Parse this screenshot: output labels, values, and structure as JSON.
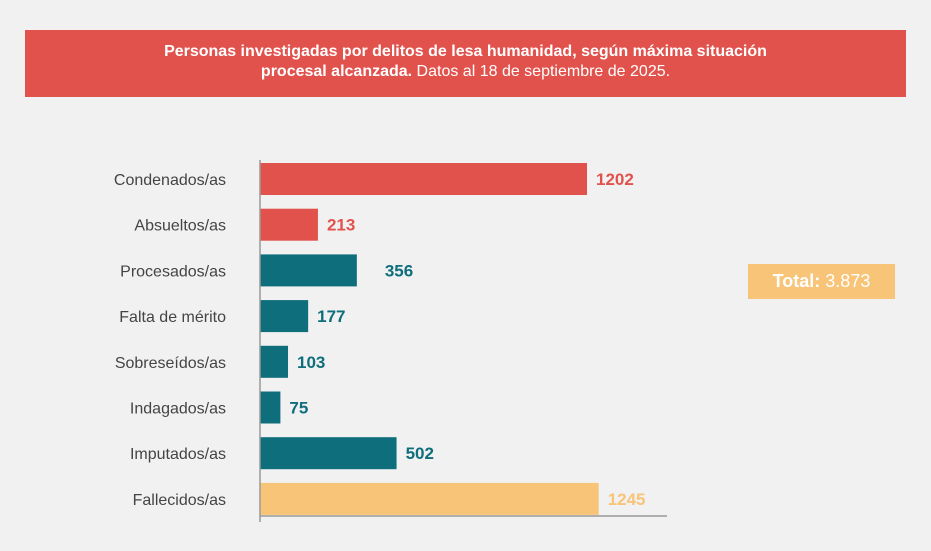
{
  "header": {
    "title_bold_line1": "Personas investigadas por delitos de lesa humanidad, según máxima situación",
    "title_bold_line2": "procesal alcanzada.",
    "title_regular": " Datos al 18 de septiembre de 2025."
  },
  "total": {
    "label": "Total:",
    "value": " 3.873"
  },
  "colors": {
    "red": "#e2524c",
    "teal": "#0e6e7c",
    "yellow": "#f8c477"
  },
  "chart_data": {
    "type": "bar",
    "orientation": "horizontal",
    "title": "Personas investigadas por delitos de lesa humanidad, según máxima situación procesal alcanzada. Datos al 18 de septiembre de 2025.",
    "categories": [
      "Condenados/as",
      "Absueltos/as",
      "Procesados/as",
      "Falta de mérito",
      "Sobreseídos/as",
      "Indagados/as",
      "Imputados/as",
      "Fallecidos/as"
    ],
    "values": [
      1202,
      213,
      356,
      177,
      103,
      75,
      502,
      1245
    ],
    "labels": [
      "1202",
      "213",
      "356",
      "177",
      "103",
      "75",
      "502",
      "1245"
    ],
    "bar_colors": [
      "red",
      "red",
      "teal",
      "teal",
      "teal",
      "teal",
      "teal",
      "yellow"
    ],
    "xlim": [
      0,
      1500
    ],
    "grid": false,
    "xlabel": "",
    "ylabel": ""
  }
}
